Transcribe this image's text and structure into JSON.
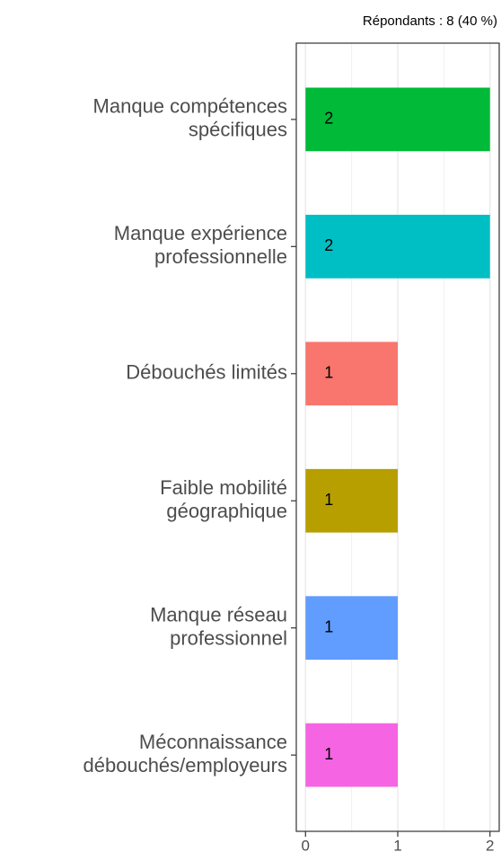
{
  "chart_data": {
    "type": "hbar",
    "subtitle": "Répondants : 8 (40 %)",
    "categories": [
      [
        "Manque compétences",
        "spécifiques"
      ],
      [
        "Manque expérience",
        "professionnelle"
      ],
      [
        "Débouchés limités"
      ],
      [
        "Faible mobilité",
        "géographique"
      ],
      [
        "Manque réseau",
        "professionnel"
      ],
      [
        "Méconnaissance",
        "débouchés/employeurs"
      ]
    ],
    "values": [
      2,
      2,
      1,
      1,
      1,
      1
    ],
    "colors": [
      "#00BA38",
      "#00BFC4",
      "#F8766D",
      "#B79F00",
      "#619CFF",
      "#F564E3"
    ],
    "xlim": [
      -0.1,
      2.1
    ],
    "xticks": [
      0,
      1,
      2
    ],
    "grid": true
  }
}
